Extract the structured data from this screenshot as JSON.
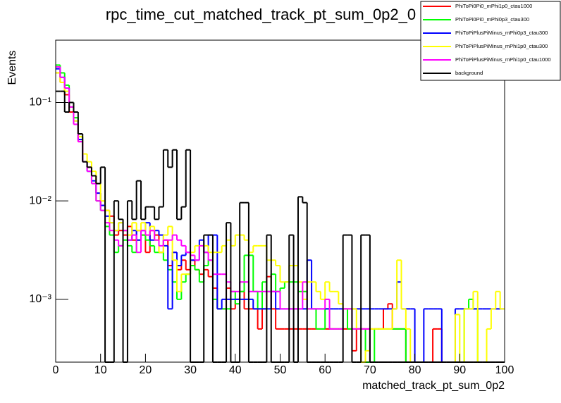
{
  "chart_data": {
    "type": "histogram",
    "title": "rpc_time_cut_matched_track_pt_sum_0p2_0",
    "x_label": "matched_track_pt_sum_0p2",
    "y_label": "Events",
    "log_y": true,
    "legend": "top-right",
    "bins": [
      0,
      1,
      2,
      3,
      4,
      5,
      6,
      7,
      8,
      9,
      10,
      11,
      12,
      13,
      14,
      15,
      16,
      17,
      18,
      19,
      20,
      21,
      22,
      23,
      24,
      25,
      26,
      27,
      28,
      29,
      30,
      31,
      32,
      33,
      34,
      35,
      36,
      37,
      38,
      39,
      40,
      41,
      42,
      43,
      44,
      45,
      46,
      47,
      48,
      49,
      50,
      51,
      52,
      53,
      54,
      55,
      56,
      57,
      58,
      59,
      60,
      61,
      62,
      63,
      64,
      65,
      66,
      67,
      68,
      69,
      70,
      71,
      72,
      73,
      74,
      75,
      76,
      77,
      78,
      79,
      80,
      81,
      82,
      83,
      84,
      85,
      86,
      87,
      88,
      89,
      90,
      91,
      92,
      93,
      94,
      95,
      96,
      97,
      98,
      99,
      100
    ],
    "xlim": [
      0,
      100
    ],
    "xticks": [
      0,
      10,
      20,
      30,
      40,
      50,
      60,
      70,
      80,
      90,
      100
    ],
    "ylim": [
      0.00023,
      0.43
    ],
    "yticks": [
      {
        "value": 0.001,
        "label": "10⁻³"
      },
      {
        "value": 0.01,
        "label": "10⁻²"
      },
      {
        "value": 0.1,
        "label": "10⁻¹"
      }
    ],
    "series": [
      {
        "name": "PhiToPi0Pi0_mPhi1p0_ctau1000",
        "color": "#ff0000",
        "values": [
          0.2,
          0.16,
          0.12,
          0.08,
          0.06,
          0.04,
          0.025,
          0.022,
          0.018,
          0.012,
          0.009,
          0.008,
          0.007,
          0.0045,
          0.005,
          0.0045,
          0.0055,
          0.004,
          0.005,
          0.0045,
          0.003,
          0.005,
          0.0045,
          0.003,
          0.004,
          0.0022,
          0.003,
          0.002,
          0.0025,
          0.002,
          0.0025,
          0.002,
          0.0018,
          0.002,
          0.0017,
          0.0013,
          0.0008,
          0.0008,
          0.0013,
          0.0008,
          0.001,
          0.0012,
          0.0008,
          0.0008,
          0.0008,
          0.0005,
          0.0008,
          0.0017,
          0.0008,
          0.0005,
          0.0005,
          0.0005,
          0.0005,
          0.0005,
          0.0005,
          0.0005,
          0.0005,
          0.0005,
          0.0005,
          0.0005,
          0.0005,
          0.0005,
          0.0005,
          0.0005,
          0.0005,
          0.0005,
          0.0003,
          0.0005,
          0.0005,
          0.0005,
          0.0005,
          0.0005,
          0.0005,
          0.0008,
          0.0009,
          0.0005,
          0.0005,
          0.0005,
          0,
          0,
          0,
          0,
          0,
          0,
          0.0005,
          0.0005,
          0,
          0,
          0,
          0,
          0,
          0,
          0,
          0,
          0,
          0,
          0,
          0,
          0,
          0
        ]
      },
      {
        "name": "PhiToPi0Pi0_mPhi0p3_ctau300",
        "color": "#00ff00",
        "values": [
          0.24,
          0.2,
          0.15,
          0.1,
          0.07,
          0.045,
          0.025,
          0.02,
          0.015,
          0.01,
          0.008,
          0.0055,
          0.0045,
          0.003,
          0.0035,
          0.004,
          0.0035,
          0.003,
          0.004,
          0.0045,
          0.004,
          0.0035,
          0.003,
          0.003,
          0.0025,
          0.002,
          0.0015,
          0.001,
          0.0015,
          0.0018,
          0.0022,
          0.002,
          0.0015,
          0.0022,
          0.0025,
          0.001,
          0.0008,
          0.0008,
          0.0008,
          0.0012,
          0.0009,
          0.0012,
          0.0028,
          0.0028,
          0.0012,
          0.0008,
          0.0015,
          0.0012,
          0.0018,
          0.0012,
          0.0013,
          0.0015,
          0.0015,
          0.0015,
          0.0012,
          0.0012,
          0.0008,
          0.0008,
          0.0005,
          0.0005,
          0.0008,
          0.0005,
          0.0005,
          0.0005,
          0.0008,
          0.0005,
          0.0005,
          0.0005,
          0.0005,
          0,
          0,
          0.0005,
          0.0005,
          0.0005,
          0.0005,
          0.0005,
          0.0005,
          0.0005,
          0,
          0,
          0,
          0,
          0,
          0,
          0,
          0,
          0,
          0,
          0,
          0,
          0,
          0.0008,
          0.001,
          0.0008,
          0,
          0,
          0,
          0,
          0,
          0
        ]
      },
      {
        "name": "PhiToPiPlusPiMinus_mPhi0p3_ctau300",
        "color": "#0000ff",
        "values": [
          0.22,
          0.18,
          0.14,
          0.09,
          0.065,
          0.042,
          0.025,
          0.02,
          0.016,
          0.012,
          0.009,
          0.007,
          0.006,
          0.005,
          0.006,
          0.005,
          0.004,
          0.005,
          0.004,
          0.005,
          0.006,
          0.004,
          0.005,
          0.0045,
          0.0035,
          0.0008,
          0.003,
          0.0022,
          0.0028,
          0.003,
          0.0025,
          0.0025,
          0.004,
          0.003,
          0.0045,
          0.0045,
          0.0008,
          0.001,
          0.001,
          0.001,
          0.001,
          0.001,
          0.001,
          0.001,
          0.0008,
          0.0008,
          0.0008,
          0.0008,
          0.0012,
          0.0008,
          0.0008,
          0.0008,
          0.0008,
          0.0008,
          0.0008,
          0.0008,
          0.0025,
          0.0008,
          0.0008,
          0.0008,
          0.0008,
          0.0008,
          0.0008,
          0.0008,
          0.0008,
          0.0008,
          0.0008,
          0.0008,
          0.0008,
          0.0008,
          0.0008,
          0.0008,
          0.0008,
          0.0008,
          0.0008,
          0.0008,
          0.0015,
          0.0008,
          0.0008,
          0.0008,
          0,
          0,
          0.0008,
          0.0008,
          0.0008,
          0.0008,
          0,
          0,
          0,
          0.0008,
          0.0008,
          0.0008,
          0.0008,
          0.0008,
          0.0008,
          0.0008,
          0.0008,
          0.0008,
          0.0008,
          0.0008
        ]
      },
      {
        "name": "PhiToPiPlusPiMinus_mPhi1p0_ctau300",
        "color": "#ffff00",
        "values": [
          0.2,
          0.16,
          0.13,
          0.09,
          0.065,
          0.045,
          0.03,
          0.025,
          0.02,
          0.015,
          0.01,
          0.008,
          0.006,
          0.005,
          0.006,
          0.005,
          0.0045,
          0.006,
          0.005,
          0.006,
          0.0045,
          0.0055,
          0.004,
          0.003,
          0.0045,
          0.0055,
          0.0025,
          0.0012,
          0.0018,
          0.0018,
          0.003,
          0.0035,
          0.0035,
          0.0035,
          0.003,
          0.003,
          0.003,
          0.0035,
          0.004,
          0.0035,
          0.0045,
          0.0045,
          0.004,
          0.003,
          0.0035,
          0.0035,
          0.0035,
          0.0025,
          0.0025,
          0.0022,
          0.0015,
          0.0015,
          0.0022,
          0.0022,
          0.0015,
          0.001,
          0.0015,
          0.0015,
          0.0012,
          0.001,
          0.0015,
          0.0012,
          0.0012,
          0.0009,
          0.0008,
          0.0008,
          0.0008,
          0.0005,
          0,
          0.0003,
          0.0005,
          0.0005,
          0.0005,
          0.0005,
          0.0005,
          0.0008,
          0.0025,
          0.0008,
          0.0005,
          0,
          0,
          0,
          0,
          0,
          0,
          0,
          0,
          0,
          0,
          0.0007,
          0,
          0.0008,
          0.0008,
          0.0012,
          0,
          0,
          0.0005,
          0.0008,
          0.0012,
          0.0008
        ]
      },
      {
        "name": "PhiToPiPlusPiMinus_mPhi1p0_ctau1000",
        "color": "#ff00ff",
        "values": [
          0.23,
          0.18,
          0.14,
          0.09,
          0.06,
          0.04,
          0.025,
          0.02,
          0.015,
          0.01,
          0.008,
          0.006,
          0.005,
          0.004,
          0.0035,
          0.005,
          0.004,
          0.0045,
          0.003,
          0.005,
          0.0045,
          0.005,
          0.004,
          0.0035,
          0.004,
          0.004,
          0.0045,
          0.004,
          0.0035,
          0.003,
          0.0028,
          0.0025,
          0.0035,
          0.003,
          0.0025,
          0.0018,
          0.0018,
          0.0018,
          0.0015,
          0.0012,
          0.0012,
          0.0015,
          0.0015,
          0.0012,
          0.0012,
          0.0012,
          0.0012,
          0.0012,
          0.0012,
          0.0012,
          0.0008,
          0.0008,
          0.0008,
          0.0008,
          0.0008,
          0.0015,
          0.0008,
          0.0008,
          0.0008,
          0.0008,
          0.001,
          0.0005,
          0.0005,
          0.0005,
          0.0008,
          0.0008,
          0.0005,
          0.0005,
          0.0005,
          0.0005,
          0,
          0,
          0,
          0,
          0,
          0,
          0,
          0,
          0,
          0,
          0,
          0,
          0,
          0,
          0,
          0,
          0,
          0,
          0,
          0,
          0,
          0,
          0,
          0,
          0,
          0,
          0,
          0,
          0,
          0
        ]
      },
      {
        "name": "background",
        "color": "#000000",
        "values": [
          0.13,
          0.13,
          0.08,
          0.1,
          0.08,
          0.048,
          0.025,
          0.022,
          0.018,
          0.015,
          0.022,
          0,
          0,
          0.01,
          0.0065,
          0,
          0.01,
          0.0065,
          0.016,
          0.0065,
          0.0087,
          0.0087,
          0.0065,
          0.0087,
          0.033,
          0.022,
          0.033,
          0.0065,
          0.0087,
          0.033,
          0,
          0,
          0,
          0.0045,
          0.0045,
          0,
          0,
          0,
          0.006,
          0,
          0,
          0.0096,
          0.0096,
          0,
          0,
          0,
          0,
          0.0045,
          0,
          0,
          0,
          0,
          0.0045,
          0,
          0.011,
          0.0096,
          0,
          0,
          0,
          0,
          0,
          0,
          0,
          0,
          0.0045,
          0.0045,
          0,
          0,
          0.0045,
          0.0045,
          0,
          0,
          0,
          0,
          0,
          0,
          0,
          0,
          0,
          0,
          0,
          0,
          0,
          0,
          0,
          0,
          0,
          0,
          0,
          0,
          0,
          0,
          0,
          0,
          0,
          0,
          0,
          0,
          0,
          0
        ]
      }
    ]
  }
}
